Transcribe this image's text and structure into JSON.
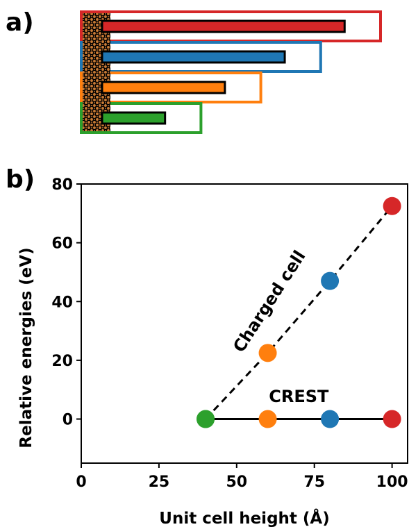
{
  "panel_a": {
    "label": "a)",
    "colors": {
      "substrate": "#c87a35",
      "substrate_mesh": "#000000"
    },
    "cells": [
      {
        "height": 100,
        "rod_length": 88,
        "color": "#d62728"
      },
      {
        "height": 80,
        "rod_length": 68,
        "color": "#1f77b4"
      },
      {
        "height": 60,
        "rod_length": 48,
        "color": "#ff7f0e"
      },
      {
        "height": 40,
        "rod_length": 28,
        "color": "#2ca02c"
      }
    ]
  },
  "panel_b": {
    "label": "b)",
    "chart_data": {
      "type": "scatter",
      "xlabel": "Unit cell height (Å)",
      "ylabel": "Relative energies (eV)",
      "xlim": [
        0,
        105
      ],
      "ylim": [
        -15,
        80
      ],
      "xticks": [
        0,
        25,
        50,
        75,
        100
      ],
      "yticks": [
        0,
        20,
        40,
        60,
        80
      ],
      "x_tick_labels": [
        "0",
        "25",
        "50",
        "75",
        "100"
      ],
      "y_tick_labels": [
        "0",
        "20",
        "40",
        "60",
        "80"
      ],
      "grid": false,
      "series": [
        {
          "name": "CREST",
          "line_style": "solid",
          "x": [
            40,
            60,
            80,
            100
          ],
          "y": [
            0,
            0,
            0,
            0
          ],
          "colors": [
            "#2ca02c",
            "#ff7f0e",
            "#1f77b4",
            "#d62728"
          ]
        },
        {
          "name": "Charged cell",
          "line_style": "dashed",
          "x": [
            40,
            60,
            80,
            100
          ],
          "y": [
            0,
            22.5,
            47,
            72.5
          ],
          "colors": [
            "#2ca02c",
            "#ff7f0e",
            "#1f77b4",
            "#d62728"
          ]
        }
      ]
    }
  }
}
